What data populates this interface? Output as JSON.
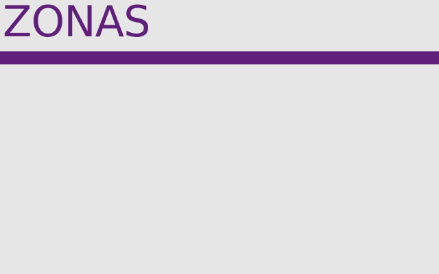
{
  "header": {
    "title": "ZONAS"
  },
  "colors": {
    "background": "#e6e6e6",
    "accent": "#5f1f7a"
  }
}
